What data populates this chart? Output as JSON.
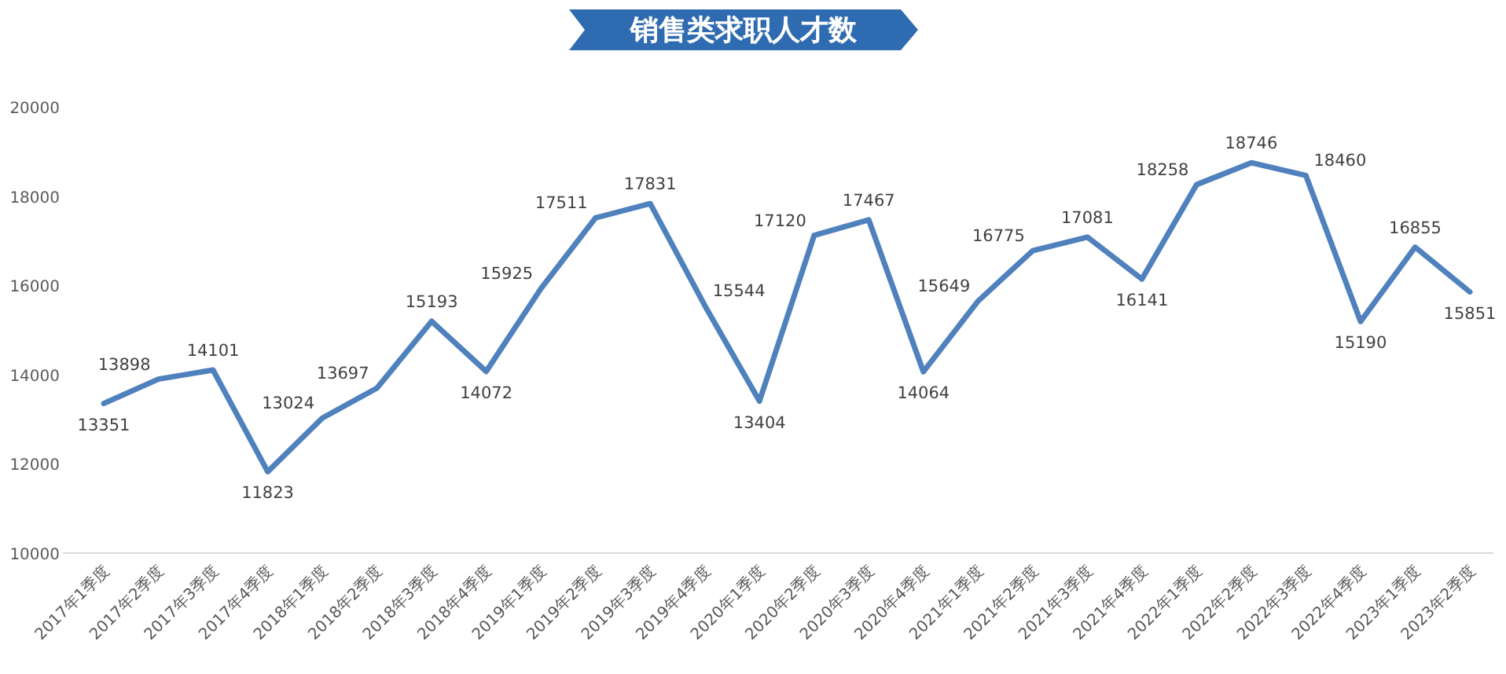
{
  "chart_data": {
    "type": "line",
    "title": "销售类求职人才数",
    "categories": [
      "2017年1季度",
      "2017年2季度",
      "2017年3季度",
      "2017年4季度",
      "2018年1季度",
      "2018年2季度",
      "2018年3季度",
      "2018年4季度",
      "2019年1季度",
      "2019年2季度",
      "2019年3季度",
      "2019年4季度",
      "2020年1季度",
      "2020年2季度",
      "2020年3季度",
      "2020年4季度",
      "2021年1季度",
      "2021年2季度",
      "2021年3季度",
      "2021年4季度",
      "2022年1季度",
      "2022年2季度",
      "2022年3季度",
      "2022年4季度",
      "2023年1季度",
      "2023年2季度"
    ],
    "series": [
      {
        "color": "#4f81bd",
        "values": [
          13351,
          13898,
          14101,
          11823,
          13024,
          13697,
          15193,
          14072,
          15925,
          17511,
          17831,
          15544,
          13404,
          17120,
          17467,
          14064,
          15649,
          16775,
          17081,
          16141,
          18258,
          18746,
          18460,
          15190,
          16855,
          15851
        ]
      }
    ],
    "ylim": [
      10000,
      20000
    ],
    "yticks": [
      10000,
      12000,
      14000,
      16000,
      18000,
      20000
    ],
    "data_labels": true
  }
}
